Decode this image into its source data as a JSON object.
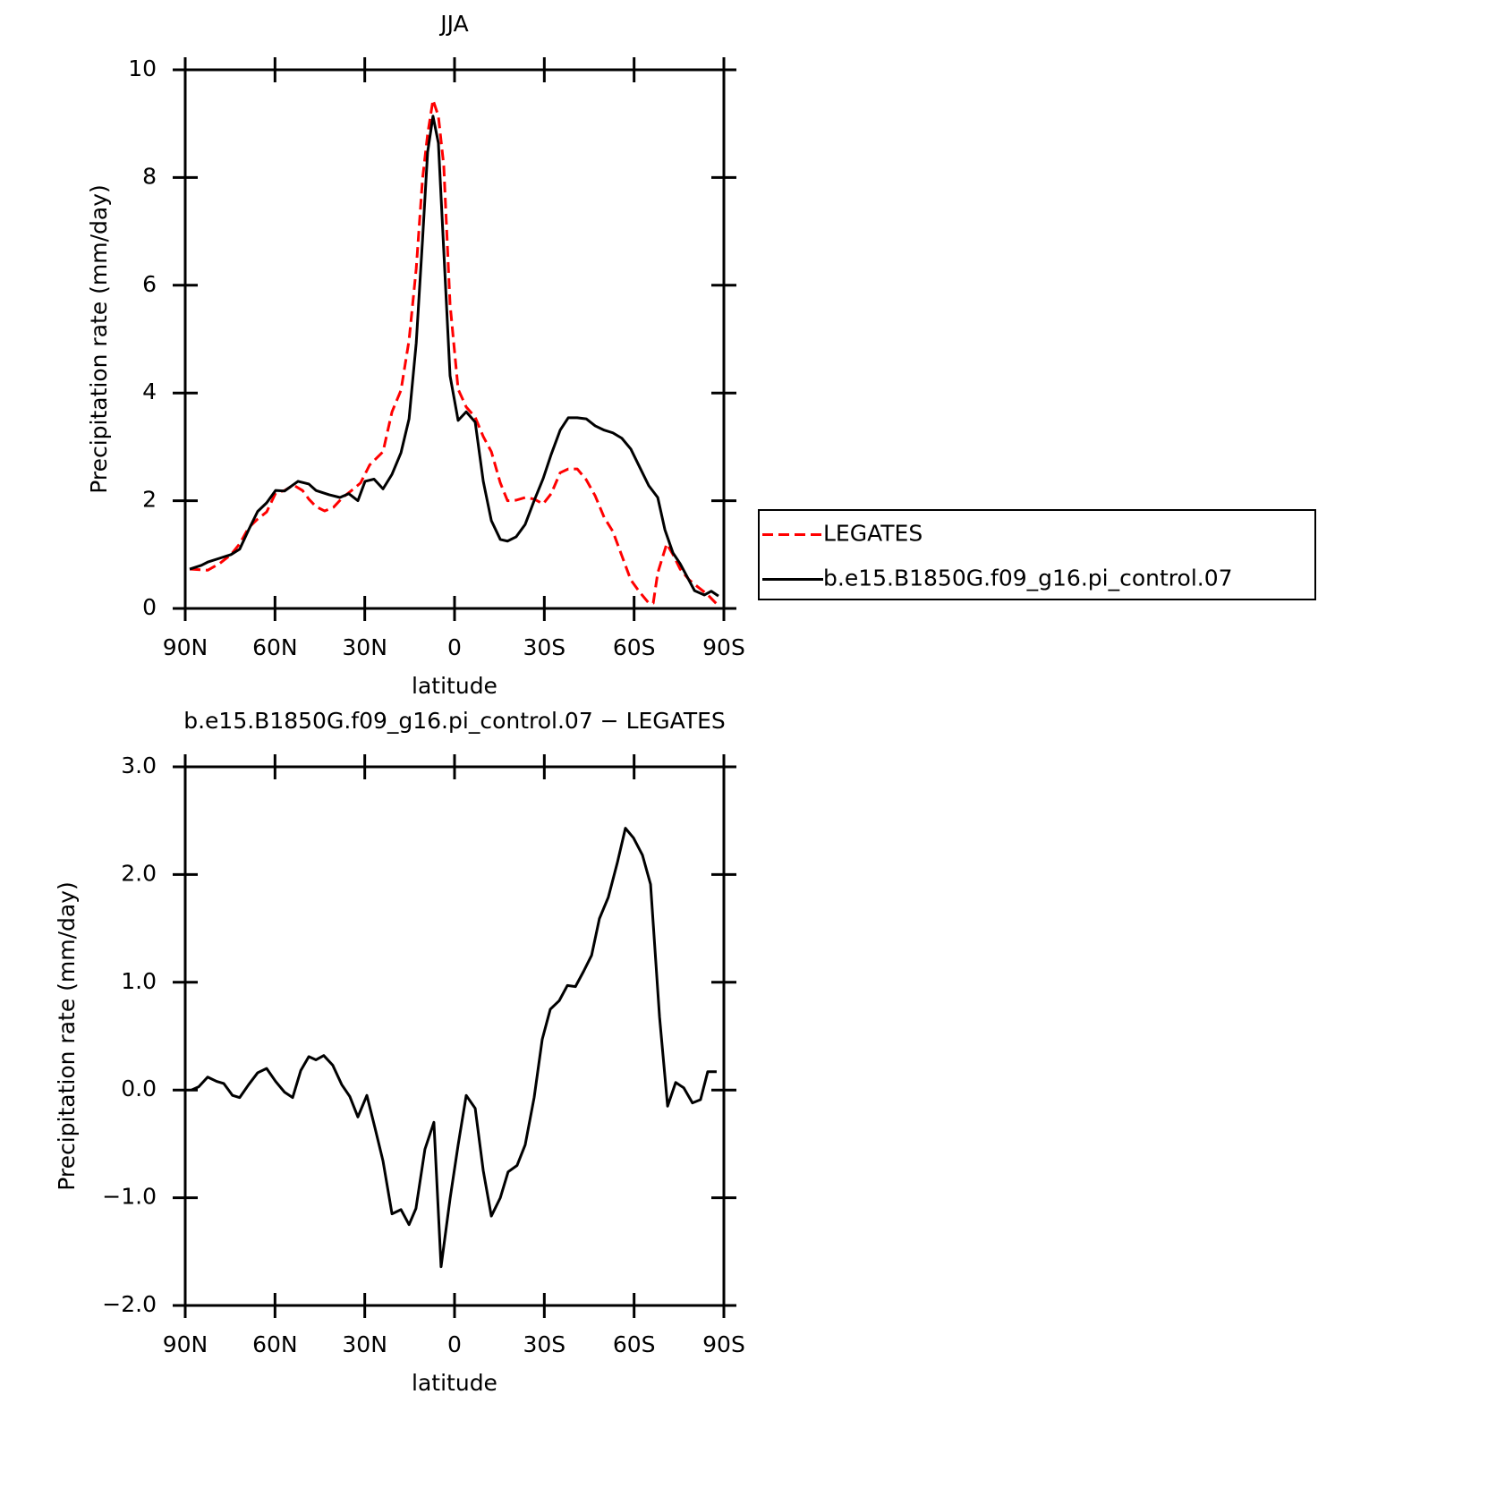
{
  "chart_data": [
    {
      "type": "line",
      "title": "JJA",
      "xlabel": "latitude",
      "ylabel": "Precipitation rate (mm/day)",
      "xlim": [
        90,
        -90
      ],
      "xticks": [
        {
          "value": 90,
          "label": "90N"
        },
        {
          "value": 60,
          "label": "60N"
        },
        {
          "value": 30,
          "label": "30N"
        },
        0,
        {
          "value": -30,
          "label": "30S"
        },
        {
          "value": -60,
          "label": "60S"
        },
        {
          "value": -90,
          "label": "90S"
        }
      ],
      "ylim": [
        0,
        10
      ],
      "yticks": [
        0,
        2,
        4,
        6,
        8,
        10
      ],
      "legend": "right",
      "series": [
        {
          "name": "LEGATES",
          "color": "#ff0000",
          "style": "dashed",
          "x": [
            88.5,
            82.5,
            78.6,
            74.7,
            71.8,
            68.8,
            65.8,
            62.8,
            59.8,
            56.8,
            53.8,
            50.8,
            48.7,
            46.3,
            43.4,
            40.4,
            37.4,
            34.4,
            31.4,
            28.4,
            23.9,
            20.9,
            17.9,
            15.2,
            12.8,
            10.7,
            9.0,
            7.2,
            5.4,
            3.6,
            1.5,
            -1.2,
            -3.9,
            -6.9,
            -9.6,
            -12.3,
            -15.3,
            -17.7,
            -20.6,
            -23.6,
            -26.6,
            -29.6,
            -32.3,
            -35.3,
            -38.0,
            -41.0,
            -44.0,
            -47.0,
            -50.0,
            -52.9,
            -55.9,
            -58.9,
            -61.9,
            -64.9,
            -66.4,
            -67.9,
            -70.9,
            -73.0,
            -75.4,
            -78.4,
            -81.3,
            -84.3,
            -88.2
          ],
          "values": [
            0.73,
            0.71,
            0.83,
            1.0,
            1.2,
            1.5,
            1.66,
            1.79,
            2.14,
            2.19,
            2.29,
            2.19,
            2.03,
            1.89,
            1.81,
            1.88,
            2.06,
            2.19,
            2.33,
            2.66,
            2.91,
            3.65,
            4.05,
            4.98,
            6.31,
            7.97,
            8.8,
            9.44,
            9.14,
            8.22,
            5.65,
            4.07,
            3.74,
            3.55,
            3.19,
            2.91,
            2.33,
            2.0,
            2.01,
            2.06,
            2.03,
            1.94,
            2.13,
            2.52,
            2.59,
            2.59,
            2.39,
            2.09,
            1.69,
            1.43,
            0.98,
            0.53,
            0.3,
            0.1,
            0.1,
            0.66,
            1.2,
            1.0,
            0.73,
            0.53,
            0.4,
            0.27,
            0.05
          ]
        },
        {
          "name": "b.e15.B1850G.f09_g16.pi_control.07",
          "color": "#000000",
          "style": "solid",
          "x": [
            88.5,
            84.6,
            82.5,
            78.6,
            74.7,
            71.8,
            68.8,
            65.8,
            62.8,
            59.8,
            56.8,
            52.3,
            48.7,
            46.3,
            41.9,
            38.3,
            35.3,
            32.3,
            29.9,
            26.9,
            23.9,
            20.9,
            17.9,
            15.2,
            12.8,
            10.7,
            9.0,
            7.2,
            5.4,
            3.6,
            1.5,
            -1.2,
            -3.9,
            -6.9,
            -9.6,
            -12.3,
            -15.3,
            -17.7,
            -20.6,
            -23.6,
            -26.6,
            -29.6,
            -32.3,
            -35.3,
            -38.0,
            -41.0,
            -44.0,
            -47.0,
            -50.0,
            -52.9,
            -55.9,
            -58.9,
            -61.9,
            -64.9,
            -67.9,
            -70.3,
            -73.0,
            -75.4,
            -77.8,
            -80.2,
            -83.5,
            -85.8,
            -88.2
          ],
          "values": [
            0.73,
            0.8,
            0.86,
            0.93,
            1.0,
            1.1,
            1.46,
            1.8,
            1.96,
            2.19,
            2.18,
            2.36,
            2.31,
            2.19,
            2.11,
            2.06,
            2.13,
            2.0,
            2.36,
            2.4,
            2.22,
            2.49,
            2.89,
            3.52,
            4.93,
            6.84,
            8.47,
            9.14,
            8.64,
            6.64,
            4.32,
            3.49,
            3.65,
            3.46,
            2.36,
            1.63,
            1.28,
            1.25,
            1.33,
            1.56,
            2.0,
            2.41,
            2.86,
            3.31,
            3.54,
            3.54,
            3.52,
            3.39,
            3.31,
            3.26,
            3.16,
            2.96,
            2.62,
            2.28,
            2.06,
            1.46,
            1.03,
            0.83,
            0.58,
            0.33,
            0.25,
            0.32,
            0.23
          ]
        }
      ]
    },
    {
      "type": "line",
      "title": "b.e15.B1850G.f09_g16.pi_control.07 − LEGATES",
      "xlabel": "latitude",
      "ylabel": "Precipitation rate (mm/day)",
      "xlim": [
        90,
        -90
      ],
      "xticks": [
        {
          "value": 90,
          "label": "90N"
        },
        {
          "value": 60,
          "label": "60N"
        },
        {
          "value": 30,
          "label": "30N"
        },
        0,
        {
          "value": -30,
          "label": "30S"
        },
        {
          "value": -60,
          "label": "60S"
        },
        {
          "value": -90,
          "label": "90S"
        }
      ],
      "ylim": [
        -2,
        3
      ],
      "yticks": [
        {
          "value": -2,
          "label": "−2.0"
        },
        {
          "value": -1,
          "label": "−1.0"
        },
        {
          "value": 0,
          "label": "0.0"
        },
        {
          "value": 1,
          "label": "1.0"
        },
        {
          "value": 2,
          "label": "2.0"
        },
        {
          "value": 3,
          "label": "3.0"
        }
      ],
      "series": [
        {
          "color": "#000000",
          "style": "solid",
          "x": [
            87.9,
            85.5,
            82.5,
            79.5,
            77.1,
            74.2,
            71.8,
            68.8,
            65.8,
            62.8,
            59.8,
            56.8,
            54.1,
            51.4,
            48.7,
            46.3,
            43.7,
            40.7,
            37.7,
            35.0,
            32.3,
            29.3,
            26.6,
            23.9,
            20.9,
            17.9,
            15.2,
            12.9,
            9.9,
            6.9,
            4.5,
            1.5,
            -1.2,
            -3.9,
            -6.9,
            -9.6,
            -12.3,
            -15.3,
            -17.9,
            -20.9,
            -23.6,
            -26.6,
            -29.3,
            -32.0,
            -35.0,
            -37.7,
            -40.4,
            -43.1,
            -45.8,
            -48.4,
            -51.4,
            -54.4,
            -57.1,
            -59.8,
            -62.8,
            -65.5,
            -68.5,
            -71.2,
            -73.9,
            -76.6,
            -79.5,
            -82.2,
            -84.6,
            -87.6
          ],
          "values": [
            0.0,
            0.03,
            0.12,
            0.08,
            0.06,
            -0.05,
            -0.07,
            0.05,
            0.16,
            0.2,
            0.08,
            -0.02,
            -0.07,
            0.18,
            0.31,
            0.28,
            0.32,
            0.23,
            0.05,
            -0.06,
            -0.25,
            -0.05,
            -0.35,
            -0.66,
            -1.15,
            -1.11,
            -1.25,
            -1.1,
            -0.55,
            -0.3,
            -1.64,
            -1.01,
            -0.51,
            -0.05,
            -0.17,
            -0.75,
            -1.17,
            -1.0,
            -0.76,
            -0.7,
            -0.51,
            -0.07,
            0.47,
            0.75,
            0.83,
            0.97,
            0.96,
            1.1,
            1.25,
            1.59,
            1.79,
            2.11,
            2.43,
            2.34,
            2.18,
            1.91,
            0.68,
            -0.15,
            0.07,
            0.02,
            -0.12,
            -0.09,
            0.17,
            0.17
          ]
        }
      ]
    }
  ]
}
